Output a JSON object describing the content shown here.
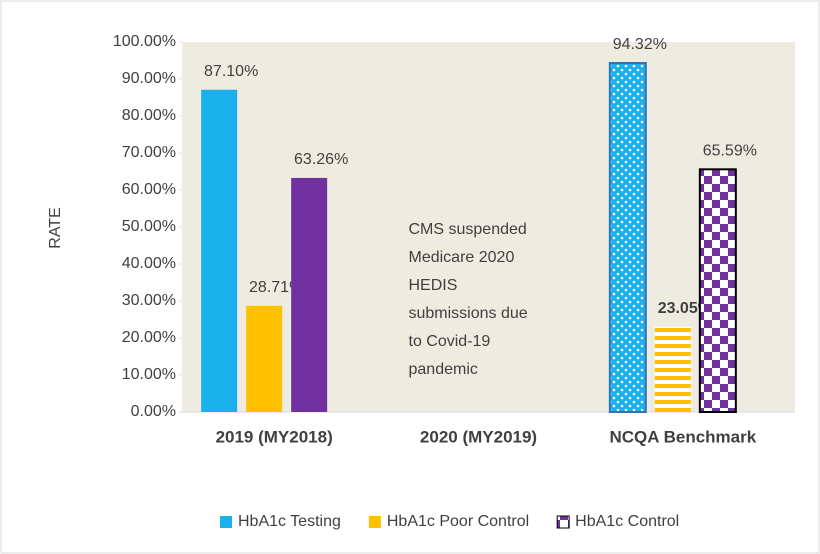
{
  "chart_data": {
    "type": "bar",
    "y_label": "RATE",
    "categories": [
      "2019 (MY2018)",
      "2020 (MY2019)",
      "NCQA Benchmark"
    ],
    "series": [
      {
        "name": "HbA1c Testing",
        "color": "#1ab0ec",
        "pattern": "dots",
        "values": [
          87.1,
          null,
          94.32
        ],
        "value_labels": [
          "87.10%",
          null,
          "94.32%"
        ]
      },
      {
        "name": "HbA1c Poor Control",
        "color": "#ffc000",
        "pattern": "stripes",
        "values": [
          28.71,
          null,
          23.05
        ],
        "value_labels": [
          "28.71%",
          null,
          "23.05%"
        ]
      },
      {
        "name": "HbA1c Control",
        "color": "#7030a0",
        "pattern": "checker",
        "values": [
          63.26,
          null,
          65.59
        ],
        "value_labels": [
          "63.26%",
          null,
          "65.59%"
        ]
      }
    ],
    "annotation": [
      "CMS suspended",
      "Medicare 2020",
      "HEDIS",
      "submissions due",
      "to Covid-19",
      "pandemic"
    ],
    "ylim": [
      0,
      100
    ],
    "yticks": [
      {
        "value": 0,
        "label": "0.00%"
      },
      {
        "value": 10,
        "label": "10.00%"
      },
      {
        "value": 20,
        "label": "20.00%"
      },
      {
        "value": 30,
        "label": "30.00%"
      },
      {
        "value": 40,
        "label": "40.00%"
      },
      {
        "value": 50,
        "label": "50.00%"
      },
      {
        "value": 60,
        "label": "60.00%"
      },
      {
        "value": 70,
        "label": "70.00%"
      },
      {
        "value": 80,
        "label": "80.00%"
      },
      {
        "value": 90,
        "label": "90.00%"
      },
      {
        "value": 100,
        "label": "100.00%"
      }
    ],
    "legend": "bottom"
  }
}
